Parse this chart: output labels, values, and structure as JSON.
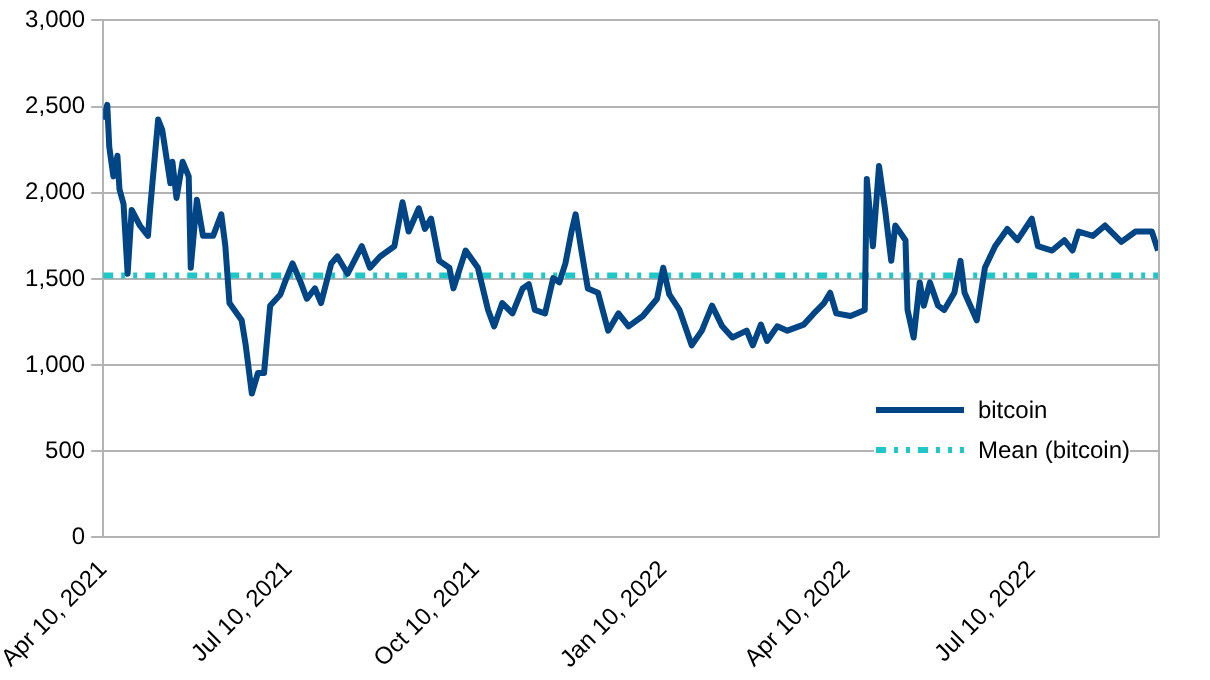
{
  "chart_data": {
    "type": "line",
    "x": [
      "2021-04-10",
      "2021-04-12",
      "2021-04-13",
      "2021-04-15",
      "2021-04-17",
      "2021-04-18",
      "2021-04-20",
      "2021-04-22",
      "2021-04-24",
      "2021-04-28",
      "2021-05-02",
      "2021-05-03",
      "2021-05-07",
      "2021-05-09",
      "2021-05-13",
      "2021-05-14",
      "2021-05-16",
      "2021-05-19",
      "2021-05-22",
      "2021-05-23",
      "2021-05-26",
      "2021-05-29",
      "2021-06-03",
      "2021-06-07",
      "2021-06-09",
      "2021-06-11",
      "2021-06-17",
      "2021-06-19",
      "2021-06-22",
      "2021-06-25",
      "2021-06-28",
      "2021-07-01",
      "2021-07-06",
      "2021-07-09",
      "2021-07-12",
      "2021-07-16",
      "2021-07-19",
      "2021-07-23",
      "2021-07-26",
      "2021-07-31",
      "2021-08-03",
      "2021-08-08",
      "2021-08-15",
      "2021-08-19",
      "2021-08-24",
      "2021-08-31",
      "2021-09-04",
      "2021-09-07",
      "2021-09-12",
      "2021-09-15",
      "2021-09-18",
      "2021-09-22",
      "2021-09-27",
      "2021-09-29",
      "2021-10-05",
      "2021-10-11",
      "2021-10-16",
      "2021-10-19",
      "2021-10-23",
      "2021-10-28",
      "2021-11-02",
      "2021-11-05",
      "2021-11-08",
      "2021-11-13",
      "2021-11-17",
      "2021-11-20",
      "2021-11-23",
      "2021-11-26",
      "2021-11-28",
      "2021-12-01",
      "2021-12-04",
      "2021-12-09",
      "2021-12-14",
      "2021-12-19",
      "2021-12-24",
      "2021-12-31",
      "2022-01-07",
      "2022-01-10",
      "2022-01-13",
      "2022-01-18",
      "2022-01-24",
      "2022-01-29",
      "2022-02-03",
      "2022-02-08",
      "2022-02-13",
      "2022-02-20",
      "2022-02-23",
      "2022-02-27",
      "2022-03-02",
      "2022-03-07",
      "2022-03-12",
      "2022-03-20",
      "2022-03-25",
      "2022-03-30",
      "2022-04-02",
      "2022-04-05",
      "2022-04-12",
      "2022-04-19",
      "2022-04-20",
      "2022-04-23",
      "2022-04-26",
      "2022-04-29",
      "2022-05-02",
      "2022-05-04",
      "2022-05-09",
      "2022-05-10",
      "2022-05-13",
      "2022-05-16",
      "2022-05-18",
      "2022-05-21",
      "2022-05-25",
      "2022-05-28",
      "2022-06-02",
      "2022-06-05",
      "2022-06-07",
      "2022-06-13",
      "2022-06-17",
      "2022-06-22",
      "2022-06-28",
      "2022-07-03",
      "2022-07-10",
      "2022-07-13",
      "2022-07-20",
      "2022-07-26",
      "2022-07-30",
      "2022-08-02",
      "2022-08-09",
      "2022-08-15",
      "2022-08-23",
      "2022-08-30",
      "2022-09-07",
      "2022-09-10"
    ],
    "series": [
      {
        "name": "bitcoin",
        "color": "#004586",
        "line_style": "solid",
        "values": [
          2425,
          2510,
          2265,
          2095,
          2215,
          2020,
          1935,
          1530,
          1900,
          1810,
          1750,
          1900,
          2425,
          2365,
          2055,
          2180,
          1970,
          2180,
          2095,
          1565,
          1960,
          1750,
          1750,
          1875,
          1690,
          1360,
          1260,
          1115,
          835,
          955,
          955,
          1345,
          1410,
          1505,
          1590,
          1480,
          1385,
          1445,
          1360,
          1590,
          1630,
          1530,
          1690,
          1565,
          1630,
          1690,
          1945,
          1775,
          1910,
          1790,
          1850,
          1605,
          1565,
          1445,
          1665,
          1565,
          1320,
          1225,
          1360,
          1300,
          1445,
          1470,
          1320,
          1300,
          1505,
          1480,
          1590,
          1775,
          1875,
          1655,
          1445,
          1420,
          1200,
          1300,
          1225,
          1285,
          1385,
          1565,
          1410,
          1320,
          1115,
          1200,
          1345,
          1225,
          1160,
          1200,
          1115,
          1235,
          1140,
          1225,
          1200,
          1235,
          1300,
          1360,
          1420,
          1300,
          1285,
          1320,
          2080,
          1690,
          2155,
          1900,
          1605,
          1810,
          1725,
          1320,
          1160,
          1480,
          1345,
          1480,
          1345,
          1320,
          1420,
          1605,
          1420,
          1260,
          1565,
          1690,
          1790,
          1725,
          1850,
          1690,
          1665,
          1725,
          1665,
          1775,
          1750,
          1810,
          1715,
          1775,
          1775,
          1665
        ]
      },
      {
        "name": "Mean (bitcoin)",
        "color": "#1fc7c7",
        "line_style": "dashed",
        "x": [
          "2021-04-10",
          "2022-09-10"
        ],
        "values": [
          1520,
          1520
        ]
      }
    ],
    "xlim": [
      "2021-04-10",
      "2022-09-10"
    ],
    "xticks": [
      {
        "value": "2021-04-10",
        "label": "Apr 10, 2021"
      },
      {
        "value": "2021-07-10",
        "label": "Jul 10, 2021"
      },
      {
        "value": "2021-10-10",
        "label": "Oct 10, 2021"
      },
      {
        "value": "2022-01-10",
        "label": "Jan 10, 2022"
      },
      {
        "value": "2022-04-10",
        "label": "Apr 10, 2022"
      },
      {
        "value": "2022-07-10",
        "label": "Jul 10, 2022"
      }
    ],
    "ylim": [
      0,
      3000
    ],
    "yticks": [
      0,
      {
        "value": 500,
        "label": "500"
      },
      {
        "value": 1000,
        "label": "1,000"
      },
      {
        "value": 1500,
        "label": "1,500"
      },
      {
        "value": 2000,
        "label": "2,000"
      },
      {
        "value": 2500,
        "label": "2,500"
      },
      {
        "value": 3000,
        "label": "3,000"
      }
    ],
    "grid": "y",
    "legend": "bottom right",
    "marker": "none"
  }
}
